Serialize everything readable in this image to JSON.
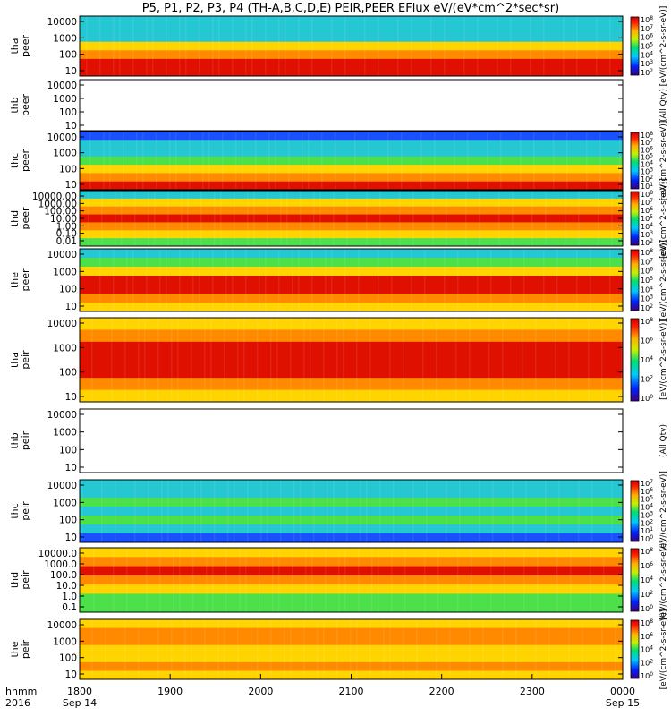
{
  "title": "P5, P1, P2, P3, P4 (TH-A,B,C,D,E) PEIR,PEER EFlux eV/(eV*cm^2*sec*sr)",
  "chart_data": {
    "type": "heatmap",
    "x": {
      "ticks": [
        "1800",
        "1900",
        "2000",
        "2100",
        "2200",
        "2300",
        "0000"
      ],
      "range": [
        1800,
        2400
      ],
      "footer_left": [
        "hhmm",
        "2016"
      ],
      "date_labels": [
        {
          "at": "1800",
          "text": "Sep 14"
        },
        {
          "at": "0000",
          "text": "Sep 15"
        }
      ]
    },
    "panels": [
      {
        "ylabel": [
          "tha",
          "peer"
        ],
        "yticks": [
          "10000",
          "1000",
          "100",
          "10"
        ],
        "log": true,
        "has_data": true,
        "cbar_ticks": [
          "10^8",
          "10^7",
          "10^6",
          "10^5",
          "10^4",
          "10^3",
          "10^2"
        ],
        "cbar_label": "[eV/(cm^2-s-sr-eV)]"
      },
      {
        "ylabel": [
          "thb",
          "peer"
        ],
        "yticks": [
          "10000",
          "1000",
          "100",
          "10"
        ],
        "log": true,
        "has_data": false,
        "cbar_ticks": [],
        "cbar_label": "(All Qty)"
      },
      {
        "ylabel": [
          "thc",
          "peer"
        ],
        "yticks": [
          "10000",
          "1000",
          "100",
          "10"
        ],
        "log": true,
        "has_data": true,
        "cbar_ticks": [
          "10^8",
          "10^7",
          "10^6",
          "10^5",
          "10^4",
          "10^3",
          "10^2",
          "10^1"
        ],
        "cbar_label": "[eV/(cm^2-s-sr-eV)]"
      },
      {
        "ylabel": [
          "thd",
          "peer"
        ],
        "yticks": [
          "10000.00",
          "1000.00",
          "100.00",
          "10.00",
          "1.00",
          "0.10",
          "0.01"
        ],
        "log": true,
        "has_data": true,
        "cbar_ticks": [
          "10^8",
          "10^7",
          "10^6",
          "10^5",
          "10^4",
          "10^3",
          "10^2"
        ],
        "cbar_label": "[eV/(cm^2-s-sr-eV)]"
      },
      {
        "ylabel": [
          "the",
          "peer"
        ],
        "yticks": [
          "10000",
          "1000",
          "100",
          "10"
        ],
        "log": true,
        "has_data": true,
        "cbar_ticks": [
          "10^8",
          "10^7",
          "10^6",
          "10^5",
          "10^4",
          "10^3",
          "10^2"
        ],
        "cbar_label": "[eV/(cm^2-s-sr-eV)]"
      },
      {
        "ylabel": [
          "tha",
          "peir"
        ],
        "yticks": [
          "10000",
          "1000",
          "100",
          "10"
        ],
        "log": true,
        "has_data": true,
        "cbar_ticks": [
          "10^8",
          "10^6",
          "10^4",
          "10^2",
          "10^0"
        ],
        "cbar_label": "[eV/(cm^2-s-sr-eV)]"
      },
      {
        "ylabel": [
          "thb",
          "peir"
        ],
        "yticks": [
          "10000",
          "1000",
          "100",
          "10"
        ],
        "log": true,
        "has_data": false,
        "cbar_ticks": [],
        "cbar_label": "(All Qty)"
      },
      {
        "ylabel": [
          "thc",
          "peir"
        ],
        "yticks": [
          "10000",
          "1000",
          "100",
          "10"
        ],
        "log": true,
        "has_data": true,
        "cbar_ticks": [
          "10^7",
          "10^6",
          "10^5",
          "10^4",
          "10^3",
          "10^2",
          "10^1",
          "10^0"
        ],
        "cbar_label": "[eV/(cm^2-s-sr-eV)]"
      },
      {
        "ylabel": [
          "thd",
          "peir"
        ],
        "yticks": [
          "10000.0",
          "1000.0",
          "100.0",
          "10.0",
          "1.0",
          "0.1"
        ],
        "log": true,
        "has_data": true,
        "cbar_ticks": [
          "10^8",
          "10^6",
          "10^4",
          "10^2",
          "10^0"
        ],
        "cbar_label": "[eV/(cm^2-s-sr-eV)]"
      },
      {
        "ylabel": [
          "the",
          "peir"
        ],
        "yticks": [
          "10000",
          "1000",
          "100",
          "10"
        ],
        "log": true,
        "has_data": true,
        "cbar_ticks": [
          "10^8",
          "10^6",
          "10^4",
          "10^2",
          "10^0"
        ],
        "cbar_label": "[eV/(cm^2-s-sr-eV)]"
      }
    ]
  }
}
